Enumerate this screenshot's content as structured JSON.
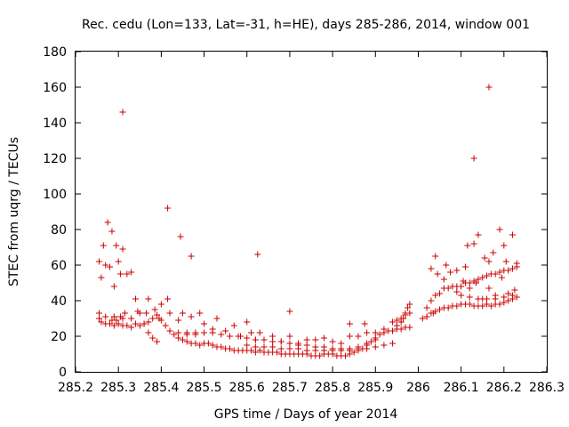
{
  "chart_data": {
    "type": "scatter",
    "title": "Rec. cedu (Lon=133, Lat=-31, h=HE), days 285-286, 2014, window 001",
    "xlabel": "GPS time / Days of year 2014",
    "ylabel": "STEC from uqrg / TECUs",
    "xlim": [
      285.2,
      286.3
    ],
    "ylim": [
      0,
      180
    ],
    "xticks": [
      "285.2",
      "285.3",
      "285.4",
      "285.5",
      "285.6",
      "285.7",
      "285.8",
      "285.9",
      "286",
      "286.1",
      "286.2",
      "286.3"
    ],
    "yticks": [
      "0",
      "20",
      "40",
      "60",
      "80",
      "100",
      "120",
      "140",
      "160",
      "180"
    ],
    "grid": false,
    "legend": "none",
    "marker": "+",
    "series_color": "#cc0000",
    "series": [
      {
        "x": [
          285.255,
          285.26,
          285.265,
          285.27,
          285.275,
          285.28,
          285.285,
          285.29,
          285.295,
          285.3,
          285.305,
          285.31,
          285.32,
          285.33,
          285.34,
          285.35,
          285.36,
          285.37,
          285.38,
          285.39,
          285.255,
          285.26,
          285.27,
          285.28,
          285.29,
          285.3,
          285.31,
          285.32,
          285.33,
          285.34,
          285.35,
          285.36,
          285.37,
          285.38,
          285.39,
          285.4,
          285.41,
          285.42,
          285.43,
          285.44,
          285.45,
          285.46,
          285.47,
          285.48,
          285.49,
          285.5,
          285.51,
          285.52,
          285.53,
          285.54,
          285.55,
          285.56,
          285.57,
          285.58,
          285.59,
          285.6,
          285.61,
          285.62,
          285.63,
          285.64,
          285.65,
          285.66,
          285.67,
          285.68,
          285.69,
          285.7,
          285.71,
          285.72,
          285.73,
          285.74,
          285.75,
          285.76,
          285.77,
          285.78,
          285.79,
          285.8,
          285.81,
          285.82,
          285.83,
          285.84,
          285.85,
          285.86,
          285.87,
          285.88,
          285.89,
          285.9,
          285.91,
          285.92,
          285.93,
          285.94,
          285.95,
          285.96,
          285.97,
          285.98,
          285.255,
          285.27,
          285.285,
          285.29,
          285.295,
          285.305,
          285.31,
          285.315,
          285.33,
          285.345,
          285.365,
          285.37,
          285.385,
          285.395,
          285.4,
          285.415,
          285.42,
          285.44,
          285.45,
          285.46,
          285.47,
          285.48,
          285.49,
          285.5,
          285.52,
          285.53,
          285.55,
          285.57,
          285.585,
          285.6,
          285.61,
          285.62,
          285.63,
          285.64,
          285.66,
          285.68,
          285.7,
          285.72,
          285.74,
          285.76,
          285.78,
          285.8,
          285.82,
          285.84,
          285.86,
          285.88,
          285.9,
          285.92,
          285.94,
          285.95,
          285.96,
          285.965,
          285.97,
          285.975,
          285.98,
          285.42,
          285.44,
          285.46,
          285.48,
          285.5,
          285.52,
          285.54,
          285.56,
          285.58,
          285.6,
          285.62,
          285.64,
          285.66,
          285.68,
          285.7,
          285.72,
          285.74,
          285.76,
          285.78,
          285.8,
          285.82,
          285.84,
          285.86,
          285.88,
          285.9,
          285.92,
          285.94,
          285.6,
          285.62,
          285.64,
          285.66,
          285.68,
          285.7,
          285.72,
          285.74,
          285.76,
          285.78,
          285.8,
          285.82,
          285.84,
          285.86,
          285.88,
          285.9,
          286.02,
          286.03,
          286.04,
          286.05,
          286.06,
          286.07,
          286.08,
          286.09,
          286.1,
          286.11,
          286.12,
          286.13,
          286.14,
          286.15,
          286.16,
          286.17,
          286.18,
          286.19,
          286.2,
          286.21,
          286.22,
          286.23,
          286.02,
          286.03,
          286.04,
          286.05,
          286.06,
          286.07,
          286.08,
          286.09,
          286.1,
          286.11,
          286.12,
          286.13,
          286.14,
          286.15,
          286.16,
          286.17,
          286.18,
          286.19,
          286.2,
          286.21,
          286.22,
          286.23,
          286.03,
          286.045,
          286.06,
          286.075,
          286.09,
          286.105,
          286.12,
          286.135,
          286.15,
          286.165,
          286.18,
          286.195,
          286.21,
          286.225,
          286.04,
          286.065,
          286.09,
          286.11,
          286.115,
          286.13,
          286.14,
          286.155,
          286.165,
          286.175,
          286.19,
          286.2,
          286.205,
          286.22,
          286.23,
          286.1,
          286.12,
          286.14,
          286.16,
          286.18,
          286.2,
          286.22,
          285.94,
          285.95,
          285.96,
          285.97,
          285.98,
          286.01,
          286.02,
          286.035,
          285.31,
          285.415,
          285.445,
          285.47,
          285.625,
          285.7,
          285.84,
          285.875,
          286.165,
          286.13
        ],
        "y": [
          62,
          53,
          71,
          60,
          84,
          59,
          79,
          48,
          71,
          62,
          55,
          69,
          55,
          56,
          41,
          33,
          27,
          22,
          19,
          17,
          30,
          28,
          27,
          27,
          26,
          27,
          26,
          26,
          25,
          27,
          26,
          27,
          28,
          30,
          32,
          29,
          26,
          23,
          21,
          19,
          18,
          17,
          16,
          16,
          15,
          16,
          16,
          15,
          14,
          14,
          13,
          13,
          12,
          12,
          12,
          12,
          12,
          11,
          12,
          11,
          11,
          11,
          11,
          10,
          10,
          10,
          10,
          10,
          10,
          10,
          9,
          9,
          9,
          10,
          10,
          10,
          9,
          9,
          9,
          10,
          11,
          12,
          13,
          15,
          17,
          19,
          21,
          22,
          23,
          23,
          24,
          24,
          25,
          25,
          33,
          31,
          29,
          31,
          29,
          31,
          30,
          33,
          30,
          34,
          33,
          41,
          35,
          30,
          38,
          41,
          33,
          29,
          33,
          22,
          31,
          22,
          33,
          27,
          24,
          30,
          23,
          26,
          20,
          28,
          22,
          18,
          22,
          18,
          20,
          17,
          20,
          16,
          18,
          18,
          19,
          17,
          16,
          20,
          20,
          22,
          22,
          24,
          23,
          26,
          28,
          30,
          33,
          36,
          38,
          23,
          22,
          21,
          21,
          22,
          22,
          21,
          20,
          20,
          19,
          18,
          18,
          17,
          17,
          16,
          15,
          15,
          14,
          14,
          13,
          13,
          13,
          13,
          13,
          14,
          15,
          16,
          15,
          14,
          14,
          14,
          13,
          13,
          13,
          12,
          12,
          12,
          12,
          12,
          12,
          14,
          16,
          18,
          31,
          33,
          34,
          35,
          36,
          36,
          37,
          37,
          38,
          38,
          38,
          37,
          37,
          37,
          38,
          37,
          38,
          38,
          39,
          40,
          41,
          42,
          36,
          40,
          43,
          44,
          47,
          47,
          48,
          48,
          48,
          50,
          50,
          51,
          52,
          53,
          54,
          55,
          55,
          56,
          57,
          57,
          58,
          59,
          58,
          55,
          52,
          56,
          45,
          51,
          47,
          50,
          41,
          47,
          43,
          53,
          44,
          46,
          65,
          60,
          57,
          59,
          71,
          72,
          77,
          64,
          62,
          67,
          80,
          71,
          62,
          77,
          61,
          43,
          42,
          41,
          41,
          41,
          42,
          43,
          28,
          29,
          30,
          32,
          33,
          30,
          31,
          33,
          146,
          92,
          76,
          65,
          66,
          34,
          27,
          27,
          160,
          120
        ]
      }
    ]
  }
}
